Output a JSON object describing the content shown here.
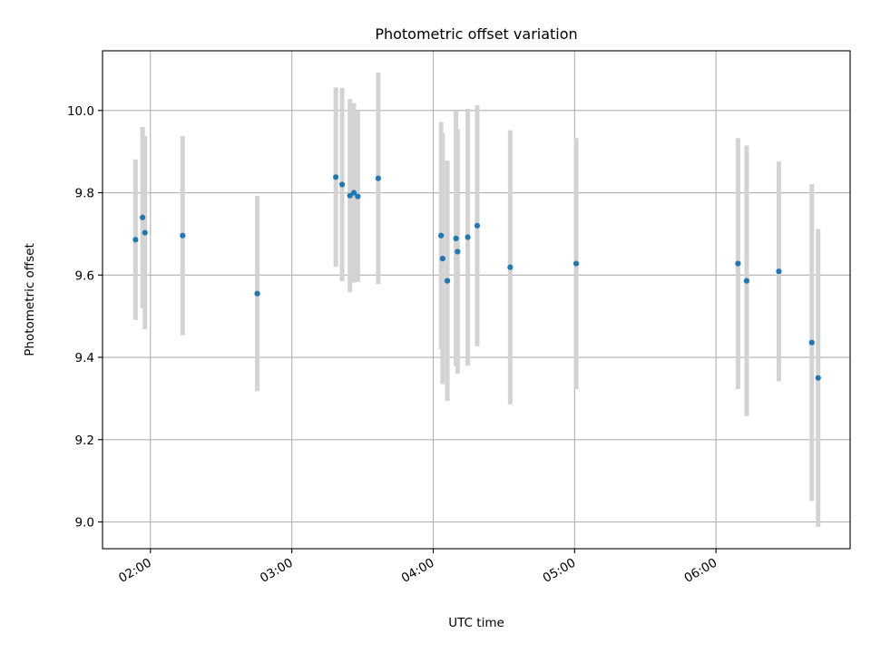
{
  "chart_data": {
    "type": "scatter",
    "title": "Photometric offset variation",
    "xlabel": "UTC time",
    "ylabel": "Photometric offset",
    "x_format": "HH:MM",
    "xlim": [
      "01:39:40",
      "06:56:55"
    ],
    "ylim": [
      8.935,
      10.145
    ],
    "x_ticks": [
      "02:00",
      "03:00",
      "04:00",
      "05:00",
      "06:00"
    ],
    "y_ticks": [
      9.0,
      9.2,
      9.4,
      9.6,
      9.8,
      10.0
    ],
    "y_tick_labels": [
      "9.0",
      "9.2",
      "9.4",
      "9.6",
      "9.8",
      "10.0"
    ],
    "grid": true,
    "legend": "none",
    "colors": {
      "marker": "#1f77b4",
      "errorbar": "#d3d3d3",
      "grid": "#b0b0b0"
    },
    "points": [
      {
        "x": "01:53:40",
        "y": 9.686,
        "err": 0.195
      },
      {
        "x": "01:56:40",
        "y": 9.74,
        "err": 0.22
      },
      {
        "x": "01:57:40",
        "y": 9.703,
        "err": 0.235
      },
      {
        "x": "02:13:40",
        "y": 9.696,
        "err": 0.242
      },
      {
        "x": "02:45:20",
        "y": 9.555,
        "err": 0.237
      },
      {
        "x": "03:18:40",
        "y": 9.838,
        "err": 0.218
      },
      {
        "x": "03:21:20",
        "y": 9.82,
        "err": 0.235
      },
      {
        "x": "03:24:40",
        "y": 9.793,
        "err": 0.235
      },
      {
        "x": "03:26:20",
        "y": 9.8,
        "err": 0.218
      },
      {
        "x": "03:28:00",
        "y": 9.791,
        "err": 0.208
      },
      {
        "x": "03:36:40",
        "y": 9.835,
        "err": 0.257
      },
      {
        "x": "04:03:20",
        "y": 9.696,
        "err": 0.276
      },
      {
        "x": "04:04:00",
        "y": 9.64,
        "err": 0.305
      },
      {
        "x": "04:06:00",
        "y": 9.586,
        "err": 0.292
      },
      {
        "x": "04:09:40",
        "y": 9.689,
        "err": 0.31
      },
      {
        "x": "04:10:20",
        "y": 9.657,
        "err": 0.297
      },
      {
        "x": "04:14:40",
        "y": 9.692,
        "err": 0.312
      },
      {
        "x": "04:18:40",
        "y": 9.72,
        "err": 0.293
      },
      {
        "x": "04:32:40",
        "y": 9.619,
        "err": 0.333
      },
      {
        "x": "05:00:40",
        "y": 9.628,
        "err": 0.305
      },
      {
        "x": "06:09:20",
        "y": 9.628,
        "err": 0.305
      },
      {
        "x": "06:13:00",
        "y": 9.586,
        "err": 0.329
      },
      {
        "x": "06:26:40",
        "y": 9.609,
        "err": 0.267
      },
      {
        "x": "06:40:40",
        "y": 9.436,
        "err": 0.385
      },
      {
        "x": "06:43:20",
        "y": 9.35,
        "err": 0.362
      }
    ]
  }
}
